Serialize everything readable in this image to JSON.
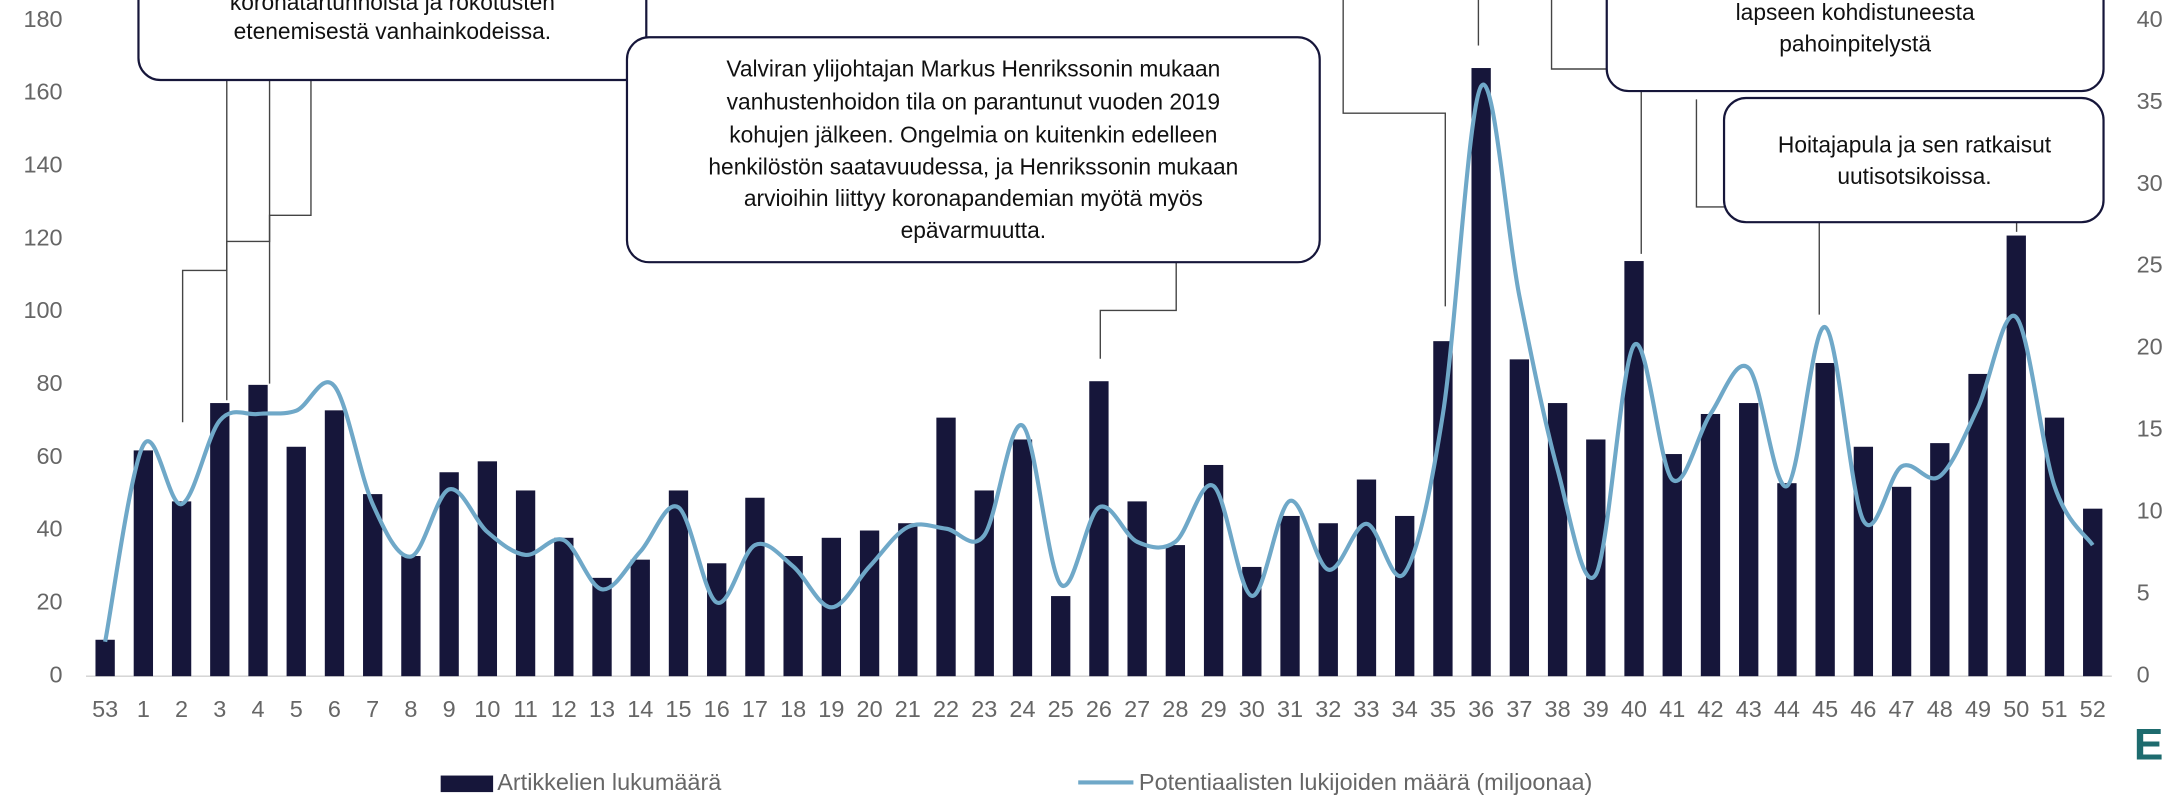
{
  "chart_data": {
    "type": "bar",
    "categories": [
      "53",
      "1",
      "2",
      "3",
      "4",
      "5",
      "6",
      "7",
      "8",
      "9",
      "10",
      "11",
      "12",
      "13",
      "14",
      "15",
      "16",
      "17",
      "18",
      "19",
      "20",
      "21",
      "22",
      "23",
      "24",
      "25",
      "26",
      "27",
      "28",
      "29",
      "30",
      "31",
      "32",
      "33",
      "34",
      "35",
      "36",
      "37",
      "38",
      "39",
      "40",
      "41",
      "42",
      "43",
      "44",
      "45",
      "46",
      "47",
      "48",
      "49",
      "50",
      "51",
      "52"
    ],
    "series": [
      {
        "name": "Artikkelien lukumäärä",
        "type": "bar",
        "color": "#16163a",
        "values": [
          10,
          62,
          48,
          75,
          80,
          63,
          73,
          50,
          33,
          56,
          59,
          51,
          38,
          27,
          32,
          51,
          31,
          49,
          33,
          38,
          40,
          42,
          71,
          51,
          65,
          22,
          81,
          48,
          36,
          58,
          30,
          44,
          42,
          54,
          44,
          92,
          167,
          87,
          75,
          65,
          114,
          61,
          72,
          75,
          53,
          86,
          63,
          52,
          64,
          83,
          121,
          71,
          46
        ]
      },
      {
        "name": "Potentiaalisten lukijoiden määrä (miljoonaa)",
        "type": "line",
        "axis": "y2",
        "color": "#6fa8c8",
        "values": [
          2.1,
          14.1,
          10.5,
          15.6,
          16,
          16.2,
          17.7,
          10.5,
          7.3,
          11.4,
          8.8,
          7.4,
          8.3,
          5.3,
          7.6,
          10.3,
          4.5,
          8,
          6.7,
          4.2,
          6.7,
          9.1,
          9,
          8.6,
          15.3,
          5.6,
          10.3,
          8.2,
          8.2,
          11.6,
          4.9,
          10.7,
          6.5,
          9.3,
          6.3,
          16,
          36,
          23.2,
          12.6,
          6.2,
          20.2,
          12,
          16,
          18.8,
          11.6,
          21.3,
          9.5,
          12.8,
          12.2,
          16.4,
          21.9,
          11.6,
          8
        ]
      }
    ],
    "ylim": [
      0,
      180
    ],
    "yticks": [
      0,
      20,
      40,
      60,
      80,
      100,
      120,
      140,
      160,
      180
    ],
    "y2lim": [
      0,
      40
    ],
    "y2ticks": [
      0,
      5,
      10,
      15,
      20,
      25,
      30,
      35,
      40
    ],
    "grid": false,
    "legend": "bottom",
    "annotations": [
      {
        "lines": [
          "koronatartunnoista ja rokotusten",
          "etenemisestä vanhainkodeissa."
        ]
      },
      {
        "lines": [
          "Valviran ylijohtajan Markus Henrikssonin mukaan",
          "vanhustenhoidon tila on parantunut vuoden 2019",
          "kohujen jälkeen. Ongelmia on kuitenkin edelleen",
          "henkilöstön saatavuudessa, ja Henrikssonin mukaan",
          "arvioihin liittyy koronapandemian myötä myös",
          "epävarmuutta."
        ]
      },
      {
        "lines": [
          "lapseen kohdistuneesta",
          "pahoinpitelystä"
        ]
      },
      {
        "lines": [
          "Hoitajapula ja sen ratkaisut",
          "uutisotsikoissa."
        ]
      }
    ],
    "logo": "E"
  }
}
